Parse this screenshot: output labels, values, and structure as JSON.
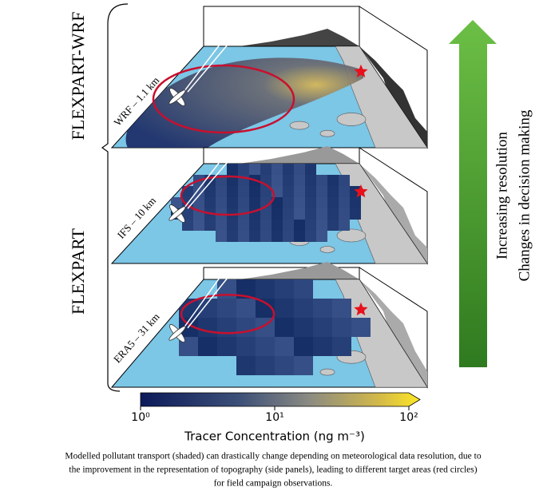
{
  "groups": [
    {
      "label": "FLEXPART-WRF"
    },
    {
      "label": "FLEXPART"
    }
  ],
  "panels": [
    {
      "label": "WRF – 1.1 km"
    },
    {
      "label": "IFS – 10 km"
    },
    {
      "label": "ERA5 – 31 km"
    }
  ],
  "arrow": {
    "lines": [
      "Increasing resolution",
      "Changes in decision making"
    ]
  },
  "colorbar": {
    "label": "Tracer Concentration (ng m⁻³)",
    "lim": [
      1,
      100
    ],
    "log": true,
    "ticks": [
      {
        "value": 1,
        "label": "10⁰"
      },
      {
        "value": 10,
        "label": "10¹"
      },
      {
        "value": 100,
        "label": "10²"
      }
    ]
  },
  "caption": [
    "Modelled pollutant transport (shaded) can drastically change depending on meteorological data resolution, due to",
    "the improvement in the representation of topography (side panels), leading to different target areas (red circles)",
    "for field campaign observations."
  ]
}
